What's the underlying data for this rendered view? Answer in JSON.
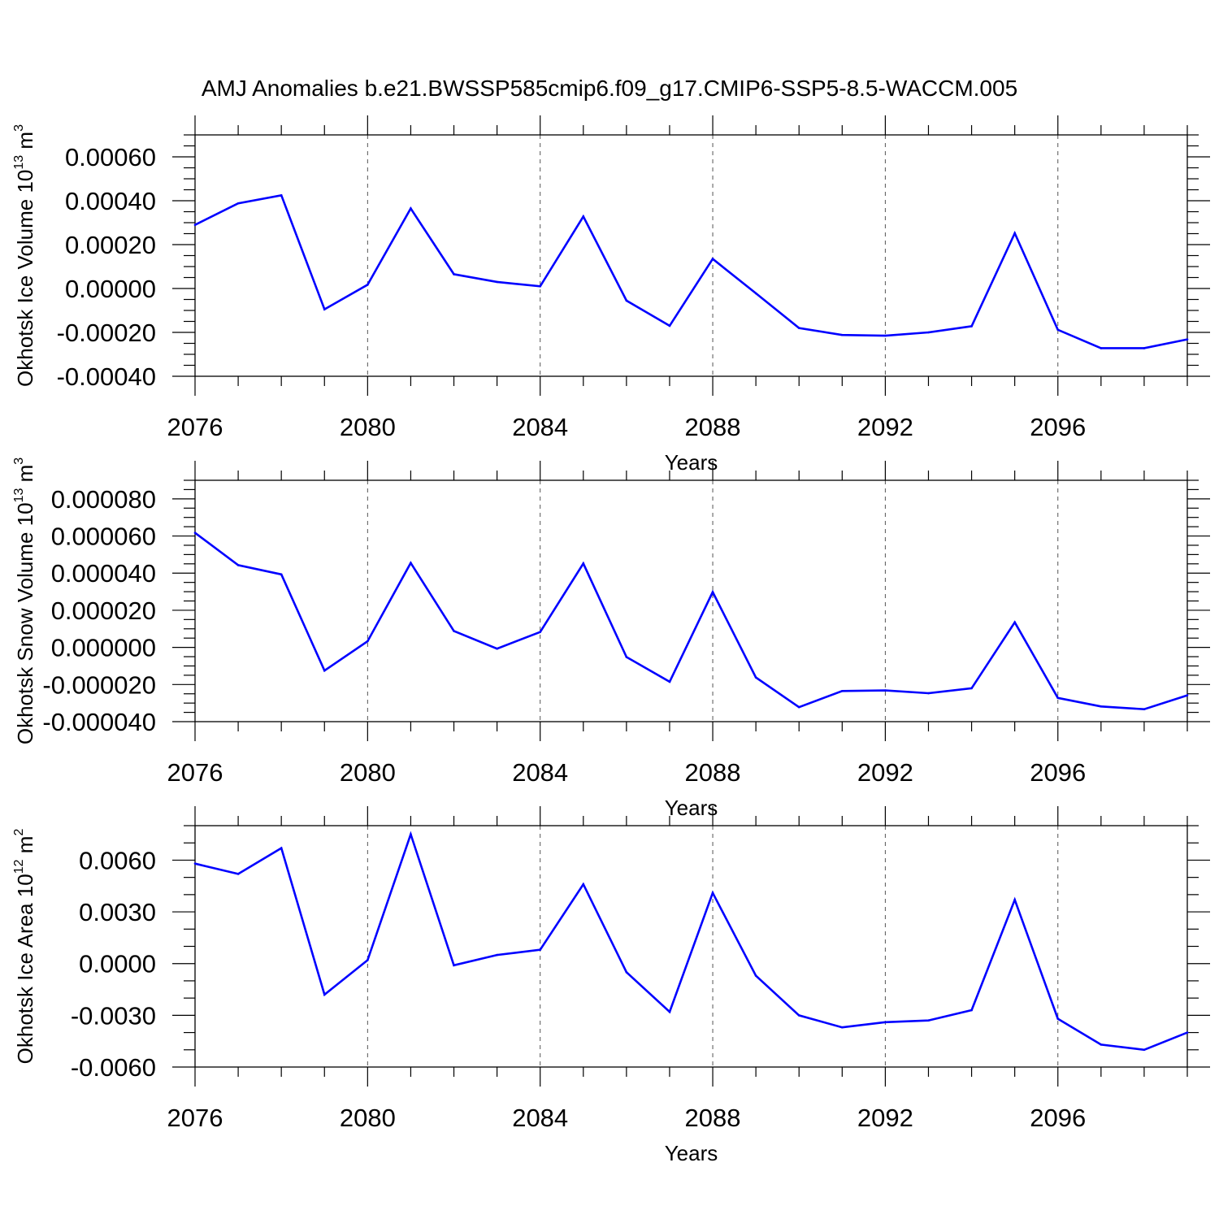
{
  "title": "AMJ Anomalies b.e21.BWSSP585cmip6.f09_g17.CMIP6-SSP5-8.5-WACCM.005",
  "chart_data": [
    {
      "type": "line",
      "ylabel": "Okhotsk Ice Volume 10",
      "ylabel_exp": "13",
      "ylabel_unit": " m",
      "ylabel_unit_exp": "3",
      "xlabel": "Years",
      "xlim": [
        2076,
        2099
      ],
      "ylim": [
        -0.0004,
        0.0007
      ],
      "xticks": [
        2076,
        2080,
        2084,
        2088,
        2092,
        2096
      ],
      "xtick_labels": [
        "2076",
        "2080",
        "2084",
        "2088",
        "2092",
        "2096"
      ],
      "yticks": [
        -0.0004,
        -0.0002,
        0.0,
        0.0002,
        0.0004,
        0.0006
      ],
      "ytick_labels": [
        "-0.00040",
        "-0.00020",
        "0.00000",
        "0.00020",
        "0.00040",
        "0.00060"
      ],
      "y_minor_step": 5e-05,
      "grid": "vertical dashed at major x ticks",
      "line_color": "#0000ff",
      "x": [
        2076,
        2077,
        2078,
        2079,
        2080,
        2081,
        2082,
        2083,
        2084,
        2085,
        2086,
        2087,
        2088,
        2089,
        2090,
        2091,
        2092,
        2093,
        2094,
        2095,
        2096,
        2097,
        2098,
        2099
      ],
      "values": [
        0.00029,
        0.000388,
        0.000425,
        -9.5e-05,
        1.7e-05,
        0.000365,
        6.5e-05,
        3e-05,
        1e-05,
        0.000328,
        -5.5e-05,
        -0.00017,
        0.000135,
        -2.2e-05,
        -0.00018,
        -0.000212,
        -0.000215,
        -0.0002,
        -0.000172,
        0.000252,
        -0.000188,
        -0.000272,
        -0.000272,
        -0.000232
      ]
    },
    {
      "type": "line",
      "ylabel": "Okhotsk Snow Volume 10",
      "ylabel_exp": "13",
      "ylabel_unit": " m",
      "ylabel_unit_exp": "3",
      "xlabel": "Years",
      "xlim": [
        2076,
        2099
      ],
      "ylim": [
        -4e-05,
        9e-05
      ],
      "xticks": [
        2076,
        2080,
        2084,
        2088,
        2092,
        2096
      ],
      "xtick_labels": [
        "2076",
        "2080",
        "2084",
        "2088",
        "2092",
        "2096"
      ],
      "yticks": [
        -4e-05,
        -2e-05,
        0.0,
        2e-05,
        4e-05,
        6e-05,
        8e-05
      ],
      "ytick_labels": [
        "-0.000040",
        "-0.000020",
        "0.000000",
        "0.000020",
        "0.000040",
        "0.000060",
        "0.000080"
      ],
      "y_minor_step": 5e-06,
      "grid": "vertical dashed at major x ticks",
      "line_color": "#0000ff",
      "x": [
        2076,
        2077,
        2078,
        2079,
        2080,
        2081,
        2082,
        2083,
        2084,
        2085,
        2086,
        2087,
        2088,
        2089,
        2090,
        2091,
        2092,
        2093,
        2094,
        2095,
        2096,
        2097,
        2098,
        2099
      ],
      "values": [
        6.17e-05,
        4.43e-05,
        3.93e-05,
        -1.25e-05,
        3.3e-06,
        4.55e-05,
        8.8e-06,
        -7e-07,
        8.3e-06,
        4.52e-05,
        -5.2e-06,
        -1.85e-05,
        2.98e-05,
        -1.62e-05,
        -3.22e-05,
        -2.35e-05,
        -2.32e-05,
        -2.47e-05,
        -2.2e-05,
        1.35e-05,
        -2.72e-05,
        -3.18e-05,
        -3.33e-05,
        -2.58e-05
      ]
    },
    {
      "type": "line",
      "ylabel": "Okhotsk Ice Area 10",
      "ylabel_exp": "12",
      "ylabel_unit": " m",
      "ylabel_unit_exp": "2",
      "xlabel": "Years",
      "xlim": [
        2076,
        2099
      ],
      "ylim": [
        -0.006,
        0.008
      ],
      "xticks": [
        2076,
        2080,
        2084,
        2088,
        2092,
        2096
      ],
      "xtick_labels": [
        "2076",
        "2080",
        "2084",
        "2088",
        "2092",
        "2096"
      ],
      "yticks": [
        -0.006,
        -0.003,
        0.0,
        0.003,
        0.006
      ],
      "ytick_labels": [
        "-0.0060",
        "-0.0030",
        "0.0000",
        "0.0030",
        "0.0060"
      ],
      "y_minor_step": 0.001,
      "grid": "vertical dashed at major x ticks",
      "line_color": "#0000ff",
      "x": [
        2076,
        2077,
        2078,
        2079,
        2080,
        2081,
        2082,
        2083,
        2084,
        2085,
        2086,
        2087,
        2088,
        2089,
        2090,
        2091,
        2092,
        2093,
        2094,
        2095,
        2096,
        2097,
        2098,
        2099
      ],
      "values": [
        0.0058,
        0.0052,
        0.0067,
        -0.0018,
        0.0002,
        0.0075,
        -0.0001,
        0.0005,
        0.0008,
        0.0046,
        -0.0005,
        -0.0028,
        0.0041,
        -0.0007,
        -0.003,
        -0.0037,
        -0.0034,
        -0.0033,
        -0.0027,
        0.0037,
        -0.0032,
        -0.0047,
        -0.005,
        -0.004
      ]
    }
  ]
}
